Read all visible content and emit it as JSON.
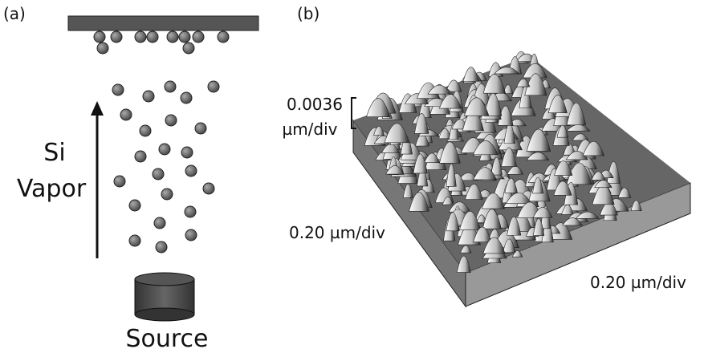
{
  "panels": {
    "a": {
      "label": "(a)",
      "vapor_label": [
        "Si",
        "Vapor"
      ],
      "source_label": "Source"
    },
    "b": {
      "label": "(b)",
      "z_scale": [
        "0.0036",
        "µm/div"
      ],
      "y_scale": "0.20 µm/div",
      "x_scale": "0.20 µm/div"
    }
  }
}
